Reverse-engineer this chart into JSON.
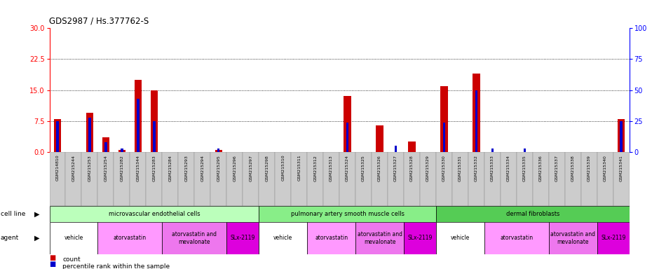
{
  "title": "GDS2987 / Hs.377762-S",
  "gsm_labels": [
    "GSM214810",
    "GSM215244",
    "GSM215253",
    "GSM215254",
    "GSM215282",
    "GSM215344",
    "GSM215283",
    "GSM215284",
    "GSM215293",
    "GSM215294",
    "GSM215295",
    "GSM215296",
    "GSM215297",
    "GSM215298",
    "GSM215310",
    "GSM215311",
    "GSM215312",
    "GSM215313",
    "GSM215324",
    "GSM215325",
    "GSM215326",
    "GSM215327",
    "GSM215328",
    "GSM215329",
    "GSM215330",
    "GSM215331",
    "GSM215332",
    "GSM215333",
    "GSM215334",
    "GSM215335",
    "GSM215336",
    "GSM215337",
    "GSM215338",
    "GSM215339",
    "GSM215340",
    "GSM215341"
  ],
  "red_values": [
    8.0,
    0.0,
    9.5,
    3.5,
    0.5,
    17.5,
    15.0,
    0.0,
    0.0,
    0.0,
    0.5,
    0.0,
    0.0,
    0.0,
    0.0,
    0.0,
    0.0,
    0.0,
    13.5,
    0.0,
    6.5,
    0.0,
    2.5,
    0.0,
    16.0,
    0.0,
    19.0,
    0.0,
    0.0,
    0.0,
    0.0,
    0.0,
    0.0,
    0.0,
    0.0,
    8.0
  ],
  "blue_values": [
    25.0,
    0.0,
    28.0,
    8.0,
    3.0,
    43.0,
    25.0,
    0.0,
    0.0,
    0.0,
    3.0,
    0.0,
    0.0,
    0.0,
    0.0,
    0.0,
    0.0,
    0.0,
    24.0,
    0.0,
    0.0,
    5.0,
    0.0,
    0.0,
    24.0,
    0.0,
    50.0,
    3.0,
    0.0,
    3.0,
    0.0,
    0.0,
    0.0,
    0.0,
    0.0,
    25.0
  ],
  "cell_line_groups": [
    {
      "label": "microvascular endothelial cells",
      "start": 0,
      "end": 13,
      "color": "#bbffbb"
    },
    {
      "label": "pulmonary artery smooth muscle cells",
      "start": 13,
      "end": 24,
      "color": "#88ee88"
    },
    {
      "label": "dermal fibroblasts",
      "start": 24,
      "end": 36,
      "color": "#55cc55"
    }
  ],
  "agent_groups": [
    {
      "label": "vehicle",
      "start": 0,
      "end": 3,
      "color": "#ffffff"
    },
    {
      "label": "atorvastatin",
      "start": 3,
      "end": 7,
      "color": "#ff99ff"
    },
    {
      "label": "atorvastatin and\nmevalonate",
      "start": 7,
      "end": 11,
      "color": "#ee77ee"
    },
    {
      "label": "SLx-2119",
      "start": 11,
      "end": 13,
      "color": "#dd00dd"
    },
    {
      "label": "vehicle",
      "start": 13,
      "end": 16,
      "color": "#ffffff"
    },
    {
      "label": "atorvastatin",
      "start": 16,
      "end": 19,
      "color": "#ff99ff"
    },
    {
      "label": "atorvastatin and\nmevalonate",
      "start": 19,
      "end": 22,
      "color": "#ee77ee"
    },
    {
      "label": "SLx-2119",
      "start": 22,
      "end": 24,
      "color": "#dd00dd"
    },
    {
      "label": "vehicle",
      "start": 24,
      "end": 27,
      "color": "#ffffff"
    },
    {
      "label": "atorvastatin",
      "start": 27,
      "end": 31,
      "color": "#ff99ff"
    },
    {
      "label": "atorvastatin and\nmevalonate",
      "start": 31,
      "end": 34,
      "color": "#ee77ee"
    },
    {
      "label": "SLx-2119",
      "start": 34,
      "end": 36,
      "color": "#dd00dd"
    }
  ],
  "ylim_left": [
    0,
    30
  ],
  "ylim_right": [
    0,
    100
  ],
  "yticks_left": [
    0,
    7.5,
    15,
    22.5,
    30
  ],
  "yticks_right": [
    0,
    25,
    50,
    75,
    100
  ],
  "red_color": "#cc0000",
  "blue_color": "#0000cc",
  "label_bg": "#cccccc"
}
